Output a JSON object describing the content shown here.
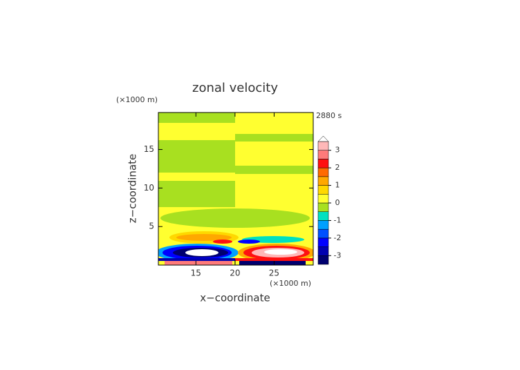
{
  "chart_data": {
    "type": "contour",
    "title": "zonal velocity",
    "xlabel": "x−coordinate",
    "ylabel": "z−coordinate",
    "x_unit": "(×1000 m)",
    "y_unit": "(×1000 m)",
    "time_label": "2880 s",
    "xlim": [
      10.2,
      30
    ],
    "xticks": [
      15,
      20,
      25
    ],
    "ylim": [
      0,
      19.8
    ],
    "yticks": [
      5,
      10,
      15
    ],
    "colorbar": {
      "levels": [
        -3.5,
        -3,
        -2.5,
        -2,
        -1.5,
        -1,
        -0.5,
        0,
        0.5,
        1,
        1.5,
        2,
        2.5,
        3,
        3.5
      ],
      "colors": [
        "#000070",
        "#0000b0",
        "#0000ff",
        "#0050ff",
        "#00a0ff",
        "#00e0c0",
        "#a8e020",
        "#ffff30",
        "#ffd800",
        "#ffa800",
        "#ff6a00",
        "#ff1010",
        "#ff7a7a",
        "#ffb8b8"
      ],
      "extend_color": "#ffffff",
      "ticks": [
        -3,
        -2,
        -1,
        0,
        1,
        2,
        3
      ]
    }
  }
}
